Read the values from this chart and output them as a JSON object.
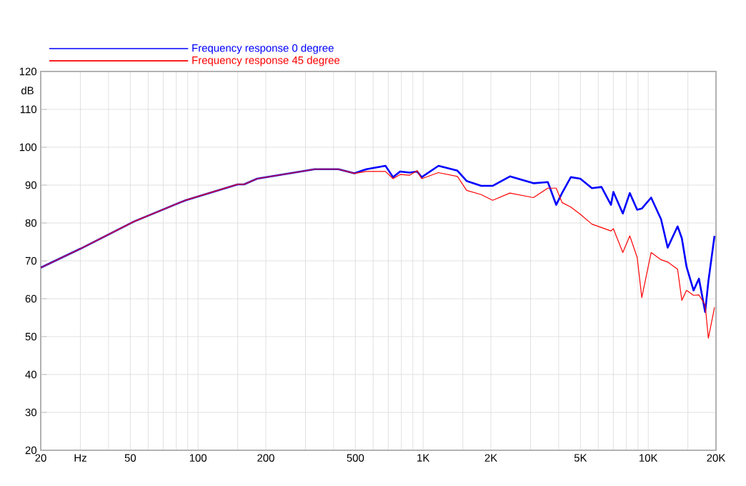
{
  "chart_data": {
    "type": "line",
    "ylabel": "dB",
    "log": "x",
    "grid": true,
    "legend": "top left",
    "line_style": "solid",
    "marker": "none",
    "xlim": [
      20,
      20000
    ],
    "ylim": [
      20,
      120
    ],
    "xticks": [
      20,
      {
        "value": 30,
        "label": "Hz"
      },
      {
        "value": 40,
        "label": null
      },
      50,
      {
        "value": 60,
        "label": null
      },
      {
        "value": 70,
        "label": null
      },
      {
        "value": 80,
        "label": null
      },
      {
        "value": 90,
        "label": null
      },
      100,
      {
        "value": 150,
        "label": null
      },
      200,
      {
        "value": 300,
        "label": null
      },
      {
        "value": 400,
        "label": null
      },
      500,
      {
        "value": 600,
        "label": null
      },
      {
        "value": 700,
        "label": null
      },
      {
        "value": 800,
        "label": null
      },
      {
        "value": 900,
        "label": null
      },
      {
        "value": 1000,
        "label": "1K"
      },
      {
        "value": 1500,
        "label": null
      },
      {
        "value": 2000,
        "label": "2K"
      },
      {
        "value": 3000,
        "label": null
      },
      {
        "value": 4000,
        "label": null
      },
      {
        "value": 5000,
        "label": "5K"
      },
      {
        "value": 6000,
        "label": null
      },
      {
        "value": 7000,
        "label": null
      },
      {
        "value": 8000,
        "label": null
      },
      {
        "value": 9000,
        "label": null
      },
      {
        "value": 10000,
        "label": "10K"
      },
      {
        "value": 15000,
        "label": null
      },
      {
        "value": 20000,
        "label": "20K"
      }
    ],
    "yticks": [
      20,
      30,
      40,
      50,
      60,
      70,
      80,
      90,
      100,
      110,
      120
    ],
    "series": [
      {
        "name": "Frequency response 0 degree",
        "color": "#0000ff",
        "x": [
          20,
          30,
          52,
          88,
          150,
          160,
          183,
          330,
          420,
          495,
          560,
          680,
          735,
          790,
          870,
          940,
          985,
          1170,
          1420,
          1560,
          1810,
          2035,
          2430,
          3090,
          3580,
          3900,
          4140,
          4530,
          4990,
          5620,
          6200,
          6830,
          7000,
          7710,
          8280,
          8930,
          9360,
          10300,
          11400,
          12200,
          13500,
          14100,
          14800,
          15900,
          16800,
          17900,
          18500,
          19700
        ],
        "values": [
          68.2,
          73.2,
          80.4,
          86,
          90.2,
          90.2,
          91.7,
          94.2,
          94.2,
          93.1,
          94.2,
          95.1,
          92.1,
          93.6,
          93.3,
          93.6,
          92.1,
          95.1,
          93.8,
          91.1,
          89.8,
          89.8,
          92.3,
          90.5,
          90.8,
          84.8,
          87.9,
          92.1,
          91.7,
          89.2,
          89.5,
          84.8,
          88.2,
          82.5,
          87.9,
          83.5,
          83.8,
          86.7,
          81,
          73.5,
          79.1,
          76,
          68.4,
          62.2,
          65.3,
          56.5,
          64.6,
          76.6
        ]
      },
      {
        "name": "Frequency response 45 degree",
        "color": "#ff0000",
        "x": [
          20,
          30,
          52,
          88,
          150,
          160,
          183,
          330,
          420,
          495,
          560,
          680,
          735,
          790,
          870,
          940,
          985,
          1170,
          1420,
          1560,
          1810,
          2035,
          2430,
          3090,
          3580,
          3900,
          4140,
          4530,
          4990,
          5620,
          6200,
          6830,
          7000,
          7710,
          8280,
          8930,
          9360,
          10300,
          11400,
          12200,
          13500,
          14100,
          14800,
          15900,
          16800,
          17900,
          18500,
          19700
        ],
        "values": [
          68.2,
          73.2,
          80.4,
          86,
          90.2,
          90.2,
          91.7,
          94.2,
          94.2,
          93.1,
          93.6,
          93.6,
          91.7,
          92.8,
          92.6,
          93.8,
          91.7,
          93.3,
          92.3,
          88.6,
          87.5,
          86,
          87.9,
          86.7,
          89.2,
          89.2,
          85.4,
          84.2,
          82.3,
          79.7,
          78.8,
          77.9,
          78.5,
          72.2,
          76.6,
          70.9,
          60.3,
          72.2,
          70.3,
          69.7,
          67.8,
          59.6,
          62.2,
          60.9,
          61,
          58.4,
          49.6,
          57.7
        ]
      }
    ]
  }
}
